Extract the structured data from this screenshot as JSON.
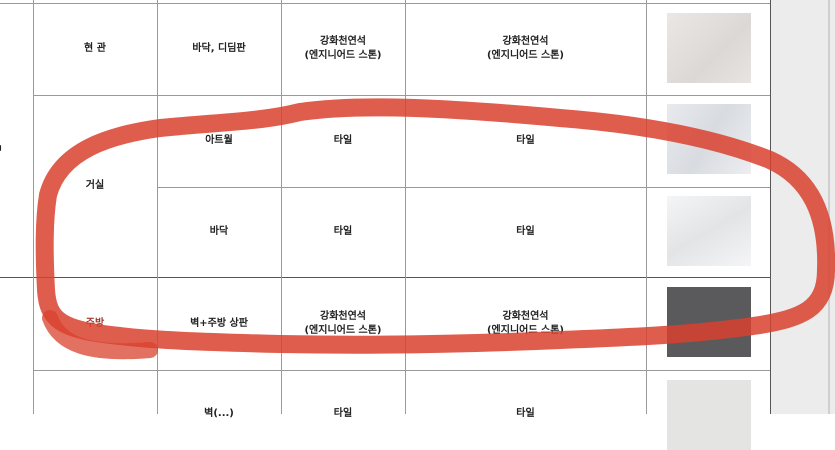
{
  "table": {
    "left_fragment": "ㅁ",
    "rows": [
      {
        "room": "현 관",
        "part": "바닥, 디딤판",
        "material_a": "강화천연석\n(엔지니어드 스톤)",
        "material_b": "강화천연석\n(엔지니어드 스톤)",
        "swatch": "#e8e4e2"
      },
      {
        "room": "거실",
        "part": "아트월",
        "material_a": "타일",
        "material_b": "타일",
        "swatch": "#e6e8ec"
      },
      {
        "room": "",
        "part": "바닥",
        "material_a": "타일",
        "material_b": "타일",
        "swatch": "#f2f3f4"
      },
      {
        "room": "주방",
        "part": "벽+주방 상판",
        "material_a": "강화천연석\n(엔지니어드 스톤)",
        "material_b": "강화천연석\n(엔지니어드 스톤)",
        "swatch": "#5a5a5c"
      },
      {
        "room": "",
        "part": "벽(...)",
        "material_a": "타일",
        "material_b": "타일",
        "swatch": "#e4e4e2"
      }
    ]
  },
  "annotation": {
    "color": "#d9412e"
  }
}
